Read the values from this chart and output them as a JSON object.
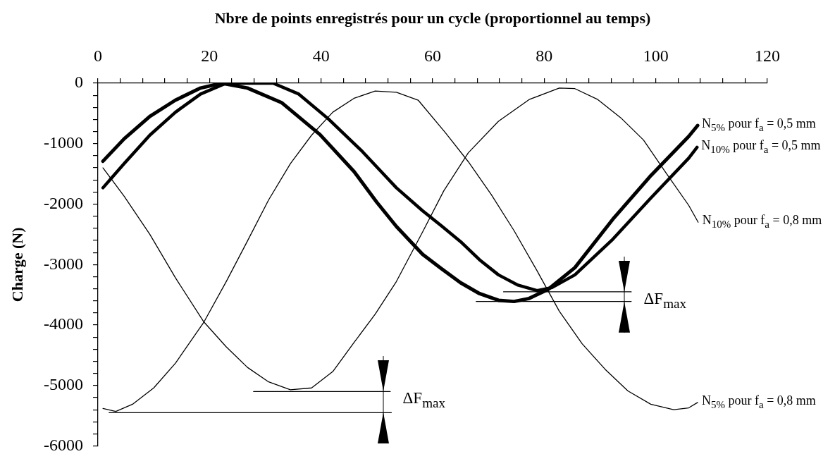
{
  "chart_data": {
    "type": "line",
    "xlabel": "Nbre de points enregistrés pour un cycle (proportionnel au temps)",
    "ylabel": "Charge (N)",
    "xlim": [
      0,
      120
    ],
    "xticks": [
      0,
      {
        "value": 4,
        "label": null
      },
      {
        "value": 8,
        "label": null
      },
      {
        "value": 12,
        "label": null
      },
      {
        "value": 16,
        "label": null
      },
      20,
      {
        "value": 24,
        "label": null
      },
      {
        "value": 28,
        "label": null
      },
      {
        "value": 32,
        "label": null
      },
      {
        "value": 36,
        "label": null
      },
      40,
      {
        "value": 44,
        "label": null
      },
      {
        "value": 48,
        "label": null
      },
      {
        "value": 52,
        "label": null
      },
      {
        "value": 56,
        "label": null
      },
      60,
      {
        "value": 64,
        "label": null
      },
      {
        "value": 68,
        "label": null
      },
      {
        "value": 72,
        "label": null
      },
      {
        "value": 76,
        "label": null
      },
      80,
      {
        "value": 84,
        "label": null
      },
      {
        "value": 88,
        "label": null
      },
      {
        "value": 92,
        "label": null
      },
      {
        "value": 96,
        "label": null
      },
      100,
      {
        "value": 104,
        "label": null
      },
      {
        "value": 108,
        "label": null
      },
      {
        "value": 112,
        "label": null
      },
      {
        "value": 116,
        "label": null
      },
      120
    ],
    "ylim": [
      -6000,
      0
    ],
    "yticks": [
      0,
      {
        "value": -200,
        "label": null
      },
      {
        "value": -400,
        "label": null
      },
      {
        "value": -600,
        "label": null
      },
      {
        "value": -800,
        "label": null
      },
      -1000,
      {
        "value": -1200,
        "label": null
      },
      {
        "value": -1400,
        "label": null
      },
      {
        "value": -1600,
        "label": null
      },
      {
        "value": -1800,
        "label": null
      },
      -2000,
      {
        "value": -2200,
        "label": null
      },
      {
        "value": -2400,
        "label": null
      },
      {
        "value": -2600,
        "label": null
      },
      {
        "value": -2800,
        "label": null
      },
      -3000,
      {
        "value": -3200,
        "label": null
      },
      {
        "value": -3400,
        "label": null
      },
      {
        "value": -3600,
        "label": null
      },
      {
        "value": -3800,
        "label": null
      },
      -4000,
      {
        "value": -4200,
        "label": null
      },
      {
        "value": -4400,
        "label": null
      },
      {
        "value": -4600,
        "label": null
      },
      {
        "value": -4800,
        "label": null
      },
      -5000,
      {
        "value": -5200,
        "label": null
      },
      {
        "value": -5400,
        "label": null
      },
      {
        "value": -5600,
        "label": null
      },
      {
        "value": -5800,
        "label": null
      },
      -6000
    ],
    "series": [
      {
        "name": "N$_{5%}$ pour f$_{a}$ = 0,5 mm",
        "color": "#000000",
        "x": [
          0.9,
          4.7,
          9.3,
          13.9,
          18.4,
          22.2,
          26.8,
          32.9,
          39.8,
          45.9,
          50,
          53.5,
          58.2,
          61.6,
          65,
          68.4,
          71.8,
          74.6,
          77.3,
          80.7,
          85.5,
          92.3,
          99.1,
          105.9,
          107.5
        ],
        "values": [
          -1290,
          -920,
          -550,
          -280,
          -80,
          0,
          -80,
          -320,
          -850,
          -1460,
          -1970,
          -2370,
          -2830,
          -3070,
          -3300,
          -3480,
          -3590,
          -3610,
          -3560,
          -3410,
          -3050,
          -2250,
          -1530,
          -880,
          -700
        ]
      },
      {
        "name": "N$_{10%}$ pour f$_{a}$ = 0,5 mm",
        "color": "#000000",
        "x": [
          0.9,
          4.7,
          9.3,
          13.9,
          18.4,
          23,
          27,
          31.4,
          36,
          41.3,
          47.4,
          53.5,
          58.2,
          61.6,
          65,
          68.4,
          71.8,
          75.3,
          78.7,
          81.4,
          85.5,
          92.3,
          99.1,
          105.9,
          107.4
        ],
        "values": [
          -1730,
          -1330,
          -860,
          -480,
          -180,
          0,
          0,
          0,
          -180,
          -590,
          -1130,
          -1730,
          -2110,
          -2360,
          -2620,
          -2920,
          -3170,
          -3340,
          -3430,
          -3380,
          -3170,
          -2580,
          -1900,
          -1240,
          -1060
        ]
      },
      {
        "name": "N$_{10%}$ pour f$_{a}$ = 0,8 mm",
        "color": "#000000",
        "x": [
          0.9,
          4.7,
          9.3,
          13.9,
          19,
          23,
          26.8,
          30.6,
          34.5,
          38.3,
          42.1,
          45.9,
          49.7,
          53.5,
          58.2,
          62,
          66.4,
          71.8,
          77.3,
          82.7,
          85.5,
          89.6,
          93.7,
          97.8,
          101.8,
          105.9,
          107.6
        ],
        "values": [
          -1400,
          -1870,
          -2500,
          -3220,
          -3950,
          -4360,
          -4700,
          -4940,
          -5070,
          -5040,
          -4770,
          -4290,
          -3820,
          -3280,
          -2460,
          -1780,
          -1150,
          -630,
          -270,
          -80,
          -90,
          -270,
          -570,
          -940,
          -1480,
          -2020,
          -2300
        ]
      },
      {
        "name": "N$_{5%}$ pour f$_{a}$ = 0,8 mm",
        "color": "#000000",
        "x": [
          0.9,
          3.2,
          6.2,
          10,
          13.9,
          19,
          23,
          26.8,
          30.6,
          34.5,
          38.3,
          42.1,
          45.9,
          49.7,
          53.5,
          57.4,
          62.3,
          66.4,
          70.5,
          74.6,
          78.7,
          82.7,
          86.8,
          90.9,
          95,
          99.1,
          103.2,
          105.9,
          107.5
        ],
        "values": [
          -5380,
          -5430,
          -5310,
          -5040,
          -4630,
          -3950,
          -3280,
          -2610,
          -1930,
          -1330,
          -860,
          -480,
          -250,
          -130,
          -150,
          -280,
          -820,
          -1300,
          -1840,
          -2440,
          -3100,
          -3770,
          -4310,
          -4730,
          -5090,
          -5310,
          -5400,
          -5370,
          -5280
        ]
      },
      {
        "type": "line",
        "color": "#000000",
        "x": [
          27.9,
          52.4
        ],
        "values": [
          -5100,
          -5100
        ]
      },
      {
        "type": "line",
        "color": "#000000",
        "x": [
          2,
          52.6
        ],
        "values": [
          -5450,
          -5450
        ]
      },
      {
        "type": "line",
        "color": "#000000",
        "x": [
          72.7,
          95.6
        ],
        "values": [
          -3450,
          -3450
        ]
      },
      {
        "type": "line",
        "color": "#000000",
        "x": [
          67.8,
          95.6
        ],
        "values": [
          -3610,
          -3610
        ]
      }
    ],
    "annotations": [
      {
        "text": "ΔF$_{max}$",
        "x": 51.1,
        "y": -5100
      },
      {
        "text": "ΔF$_{max}$",
        "x": 94.3,
        "y": -3450
      }
    ]
  }
}
